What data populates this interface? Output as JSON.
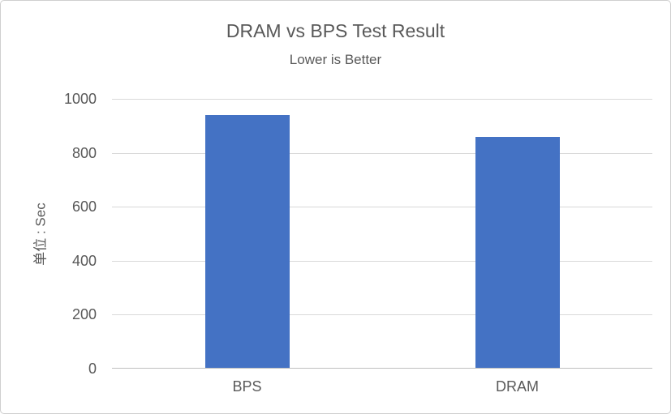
{
  "chart_data": {
    "type": "bar",
    "title": "DRAM vs BPS Test Result",
    "subtitle": "Lower is Better",
    "categories": [
      "BPS",
      "DRAM"
    ],
    "values": [
      940,
      860
    ],
    "xlabel": "",
    "ylabel": "单位 : Sec",
    "ylim": [
      0,
      1000
    ],
    "yticks": [
      0,
      200,
      400,
      600,
      800,
      1000
    ],
    "grid": true,
    "legend": false,
    "colors": {
      "bar": "#4472C4",
      "gridline": "#d9d9d9",
      "axis_line": "#bfbfbf",
      "text": "#595959",
      "frame_border": "#cfcfcf"
    }
  }
}
